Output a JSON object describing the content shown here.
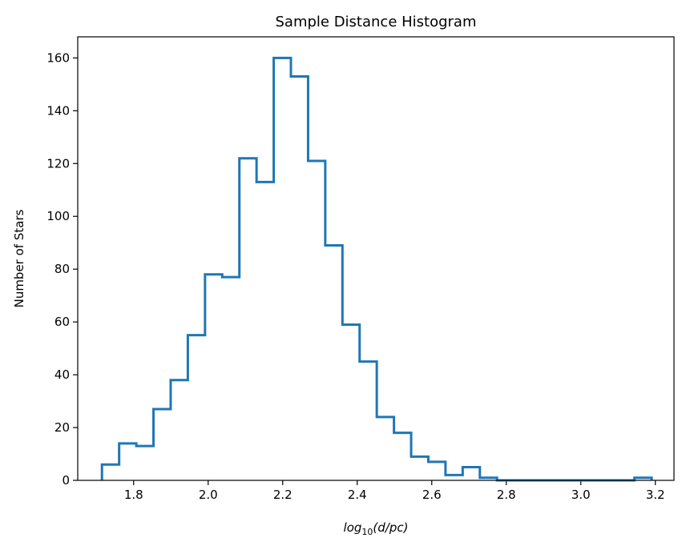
{
  "chart_data": {
    "type": "histogram",
    "title": "Sample Distance Histogram",
    "xlabel_base": "log",
    "xlabel_sub": "10",
    "xlabel_arg": "(d/pc)",
    "ylabel": "Number of Stars",
    "xlim": [
      1.65,
      3.25
    ],
    "ylim": [
      0,
      168
    ],
    "xticks": [
      1.8,
      2.0,
      2.2,
      2.4,
      2.6,
      2.8,
      3.0,
      3.2
    ],
    "xtick_labels": [
      "1.8",
      "2.0",
      "2.2",
      "2.4",
      "2.6",
      "2.8",
      "3.0",
      "3.2"
    ],
    "yticks": [
      0,
      20,
      40,
      60,
      80,
      100,
      120,
      140,
      160
    ],
    "ytick_labels": [
      "0",
      "20",
      "40",
      "60",
      "80",
      "100",
      "120",
      "140",
      "160"
    ],
    "grid": false,
    "histtype": "step",
    "color": "#1f77b4",
    "bin_start": 1.715,
    "bin_end": 3.19,
    "counts": [
      6,
      14,
      13,
      27,
      38,
      55,
      78,
      77,
      122,
      113,
      160,
      153,
      121,
      89,
      59,
      45,
      24,
      18,
      9,
      7,
      2,
      5,
      1,
      0,
      0,
      0,
      0,
      0,
      0,
      0,
      0,
      1
    ]
  }
}
